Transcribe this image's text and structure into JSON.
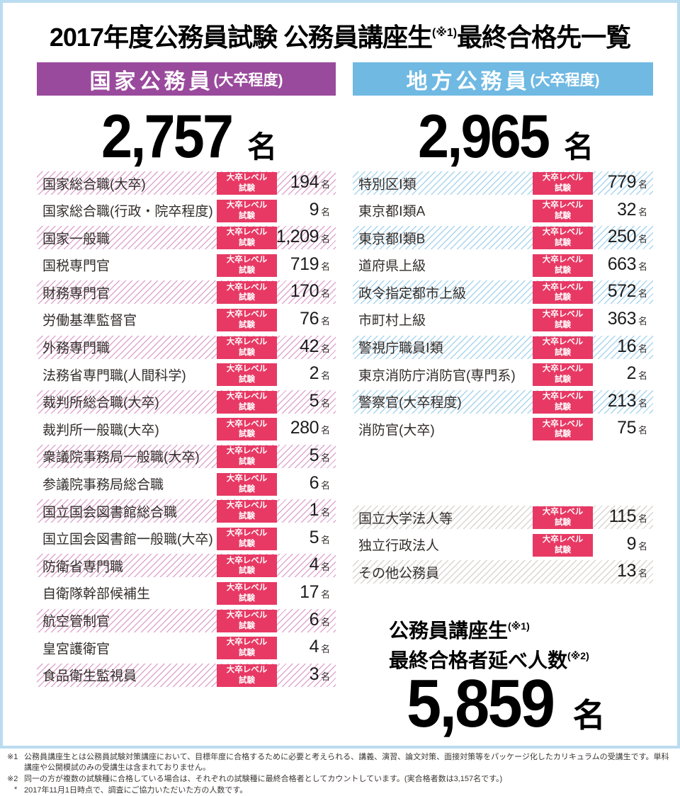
{
  "title": {
    "main": "2017年度公務員試験 公務員講座生",
    "sup": "(※1)",
    "tail": "最終合格先一覧"
  },
  "badge": {
    "line1": "大卒レベル",
    "line2": "試験"
  },
  "national": {
    "header": "国家公務員",
    "header_sub": "(大卒程度)",
    "total": "2,757",
    "total_unit": "名",
    "rows": [
      {
        "name": "国家総合職(大卒)",
        "count": "194",
        "unit": "名",
        "badge": true
      },
      {
        "name": "国家総合職(行政・院卒程度)",
        "count": "9",
        "unit": "名",
        "badge": true
      },
      {
        "name": "国家一般職",
        "count": "1,209",
        "unit": "名",
        "badge": true
      },
      {
        "name": "国税専門官",
        "count": "719",
        "unit": "名",
        "badge": true
      },
      {
        "name": "財務専門官",
        "count": "170",
        "unit": "名",
        "badge": true
      },
      {
        "name": "労働基準監督官",
        "count": "76",
        "unit": "名",
        "badge": true
      },
      {
        "name": "外務専門職",
        "count": "42",
        "unit": "名",
        "badge": true
      },
      {
        "name": "法務省専門職(人間科学)",
        "count": "2",
        "unit": "名",
        "badge": true
      },
      {
        "name": "裁判所総合職(大卒)",
        "count": "5",
        "unit": "名",
        "badge": true
      },
      {
        "name": "裁判所一般職(大卒)",
        "count": "280",
        "unit": "名",
        "badge": true
      },
      {
        "name": "衆議院事務局一般職(大卒)",
        "count": "5",
        "unit": "名",
        "badge": true
      },
      {
        "name": "参議院事務局総合職",
        "count": "6",
        "unit": "名",
        "badge": true
      },
      {
        "name": "国立国会図書館総合職",
        "count": "1",
        "unit": "名",
        "badge": true
      },
      {
        "name": "国立国会図書館一般職(大卒)",
        "count": "5",
        "unit": "名",
        "badge": true
      },
      {
        "name": "防衛省専門職",
        "count": "4",
        "unit": "名",
        "badge": true
      },
      {
        "name": "自衛隊幹部候補生",
        "count": "17",
        "unit": "名",
        "badge": true
      },
      {
        "name": "航空管制官",
        "count": "6",
        "unit": "名",
        "badge": true
      },
      {
        "name": "皇宮護衛官",
        "count": "4",
        "unit": "名",
        "badge": true
      },
      {
        "name": "食品衛生監視員",
        "count": "3",
        "unit": "名",
        "badge": true
      }
    ]
  },
  "local": {
    "header": "地方公務員",
    "header_sub": "(大卒程度)",
    "total": "2,965",
    "total_unit": "名",
    "rows": [
      {
        "name": "特別区Ⅰ類",
        "count": "779",
        "unit": "名",
        "badge": true
      },
      {
        "name": "東京都Ⅰ類A",
        "count": "32",
        "unit": "名",
        "badge": true
      },
      {
        "name": "東京都Ⅰ類B",
        "count": "250",
        "unit": "名",
        "badge": true
      },
      {
        "name": "道府県上級",
        "count": "663",
        "unit": "名",
        "badge": true
      },
      {
        "name": "政令指定都市上級",
        "count": "572",
        "unit": "名",
        "badge": true
      },
      {
        "name": "市町村上級",
        "count": "363",
        "unit": "名",
        "badge": true
      },
      {
        "name": "警視庁職員Ⅰ類",
        "count": "16",
        "unit": "名",
        "badge": true
      },
      {
        "name": "東京消防庁消防官(専門系)",
        "count": "2",
        "unit": "名",
        "badge": true
      },
      {
        "name": "警察官(大卒程度)",
        "count": "213",
        "unit": "名",
        "badge": true
      },
      {
        "name": "消防官(大卒)",
        "count": "75",
        "unit": "名",
        "badge": true
      }
    ]
  },
  "other": {
    "rows": [
      {
        "name": "国立大学法人等",
        "count": "115",
        "unit": "名",
        "badge": true
      },
      {
        "name": "独立行政法人",
        "count": "9",
        "unit": "名",
        "badge": true
      },
      {
        "name": "その他公務員",
        "count": "13",
        "unit": "名",
        "badge": false
      }
    ]
  },
  "summary": {
    "line1": "公務員講座生",
    "line1_sup": "(※1)",
    "line2": "最終合格者延べ人数",
    "line2_sup": "(※2)",
    "total": "5,859",
    "unit": "名"
  },
  "footnotes": [
    {
      "marker": "※1",
      "text": "公務員講座生とは公務員試験対策講座において、目標年度に合格するために必要と考えられる、講義、演習、論文対策、面接対策等をパッケージ化したカリキュラムの受講生です。単科講座や公開模試のみの受講生は含まれておりません。"
    },
    {
      "marker": "※2",
      "text": "同一の方が複数の試験種に合格している場合は、それぞれの試験種に最終合格者としてカウントしています。(実合格者数は3,157名です。)"
    },
    {
      "marker": "*",
      "text": "2017年11月1日時点で、調査にご協力いただいた方の人数です。"
    }
  ],
  "colors": {
    "frame_border": "#badcf0",
    "national_header_bg": "#9a4a9d",
    "local_header_bg": "#6fb9e3",
    "badge_bg": "#e73964",
    "stripe_pink": "#dfa8d0",
    "stripe_blue": "#a9d5ee",
    "stripe_gray": "#d9d5d2"
  }
}
